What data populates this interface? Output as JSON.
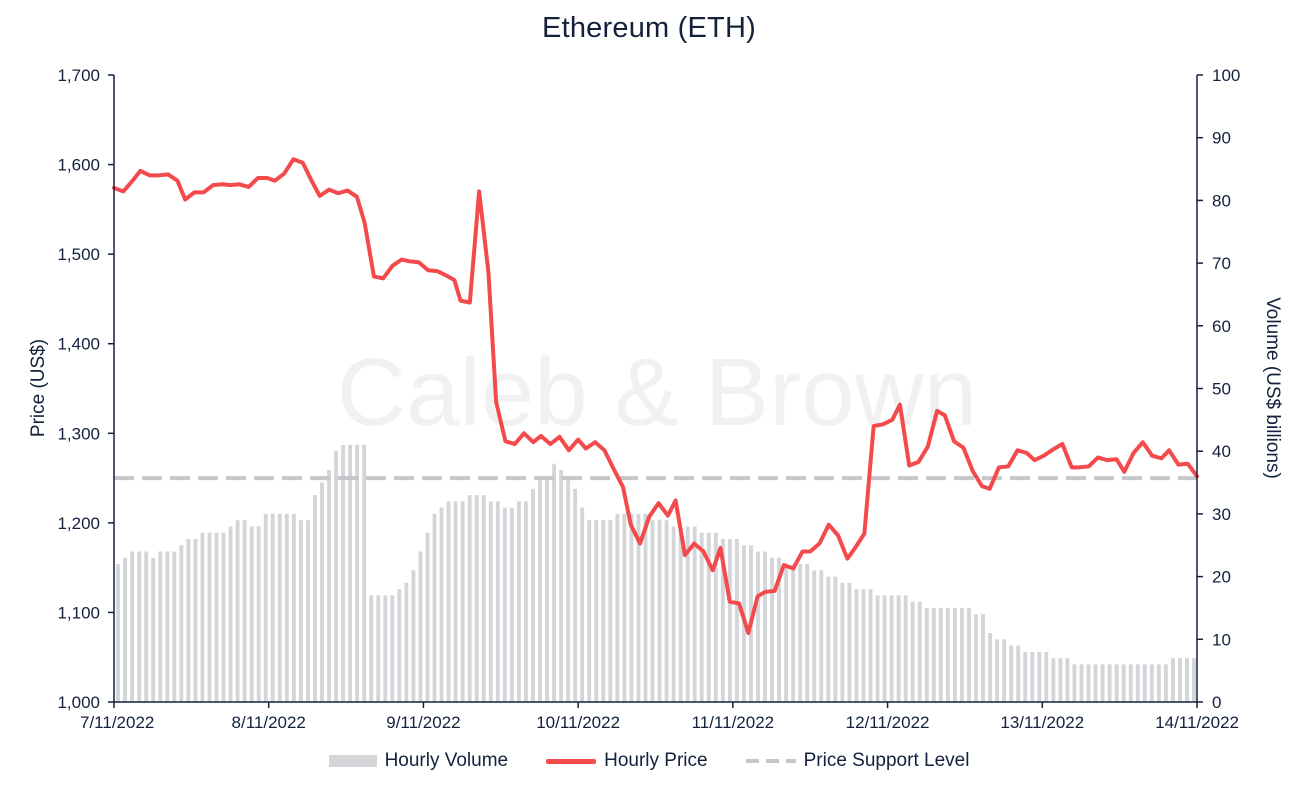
{
  "chart_data": {
    "type": "line",
    "title": "Ethereum (ETH)",
    "watermark": "Caleb & Brown",
    "x_ticks": [
      "7/11/2022",
      "8/11/2022",
      "9/11/2022",
      "10/11/2022",
      "11/11/2022",
      "12/11/2022",
      "13/11/2022",
      "14/11/2022"
    ],
    "x_range_days": [
      0,
      7
    ],
    "y_left": {
      "label": "Price (US$)",
      "range": [
        1000,
        1700
      ],
      "ticks": [
        "1,000",
        "1,100",
        "1,200",
        "1,300",
        "1,400",
        "1,500",
        "1,600",
        "1,700"
      ]
    },
    "y_right": {
      "label": "Volume (US$ billions)",
      "range": [
        0,
        100
      ],
      "ticks": [
        "0",
        "10",
        "20",
        "30",
        "40",
        "50",
        "60",
        "70",
        "80",
        "90",
        "100"
      ]
    },
    "price_support_level": 1250,
    "legend_position": "bottom",
    "colors": {
      "price": "#f44a4c",
      "volume": "#d3d5d9",
      "support": "#c4c6ca"
    },
    "series": [
      {
        "name": "Hourly Price",
        "axis": "left",
        "points": [
          [
            0.0,
            1574
          ],
          [
            0.06,
            1570
          ],
          [
            0.12,
            1582
          ],
          [
            0.17,
            1593
          ],
          [
            0.23,
            1588
          ],
          [
            0.29,
            1588
          ],
          [
            0.35,
            1589
          ],
          [
            0.41,
            1582
          ],
          [
            0.46,
            1561
          ],
          [
            0.52,
            1569
          ],
          [
            0.58,
            1569
          ],
          [
            0.64,
            1577
          ],
          [
            0.7,
            1578
          ],
          [
            0.75,
            1577
          ],
          [
            0.81,
            1578
          ],
          [
            0.87,
            1575
          ],
          [
            0.93,
            1585
          ],
          [
            0.99,
            1585
          ],
          [
            1.04,
            1582
          ],
          [
            1.1,
            1590
          ],
          [
            1.16,
            1606
          ],
          [
            1.22,
            1602
          ],
          [
            1.28,
            1581
          ],
          [
            1.33,
            1565
          ],
          [
            1.39,
            1572
          ],
          [
            1.45,
            1568
          ],
          [
            1.51,
            1571
          ],
          [
            1.57,
            1564
          ],
          [
            1.62,
            1535
          ],
          [
            1.68,
            1475
          ],
          [
            1.74,
            1473
          ],
          [
            1.8,
            1487
          ],
          [
            1.86,
            1494
          ],
          [
            1.91,
            1492
          ],
          [
            1.97,
            1491
          ],
          [
            2.03,
            1482
          ],
          [
            2.09,
            1481
          ],
          [
            2.15,
            1476
          ],
          [
            2.2,
            1471
          ],
          [
            2.24,
            1448
          ],
          [
            2.3,
            1446
          ],
          [
            2.36,
            1570
          ],
          [
            2.42,
            1480
          ],
          [
            2.47,
            1335
          ],
          [
            2.53,
            1291
          ],
          [
            2.59,
            1288
          ],
          [
            2.65,
            1300
          ],
          [
            2.71,
            1290
          ],
          [
            2.76,
            1297
          ],
          [
            2.82,
            1288
          ],
          [
            2.88,
            1296
          ],
          [
            2.94,
            1281
          ],
          [
            3.0,
            1293
          ],
          [
            3.05,
            1283
          ],
          [
            3.11,
            1290
          ],
          [
            3.17,
            1281
          ],
          [
            3.23,
            1260
          ],
          [
            3.29,
            1240
          ],
          [
            3.34,
            1198
          ],
          [
            3.4,
            1177
          ],
          [
            3.46,
            1207
          ],
          [
            3.52,
            1222
          ],
          [
            3.58,
            1208
          ],
          [
            3.63,
            1225
          ],
          [
            3.69,
            1164
          ],
          [
            3.75,
            1177
          ],
          [
            3.81,
            1168
          ],
          [
            3.87,
            1147
          ],
          [
            3.92,
            1172
          ],
          [
            3.98,
            1112
          ],
          [
            4.04,
            1110
          ],
          [
            4.1,
            1077
          ],
          [
            4.16,
            1118
          ],
          [
            4.21,
            1123
          ],
          [
            4.27,
            1124
          ],
          [
            4.33,
            1153
          ],
          [
            4.39,
            1149
          ],
          [
            4.45,
            1168
          ],
          [
            4.5,
            1168
          ],
          [
            4.56,
            1177
          ],
          [
            4.62,
            1198
          ],
          [
            4.68,
            1186
          ],
          [
            4.74,
            1160
          ],
          [
            4.79,
            1172
          ],
          [
            4.85,
            1188
          ],
          [
            4.91,
            1308
          ],
          [
            4.97,
            1310
          ],
          [
            5.03,
            1315
          ],
          [
            5.08,
            1332
          ],
          [
            5.14,
            1264
          ],
          [
            5.2,
            1268
          ],
          [
            5.26,
            1285
          ],
          [
            5.32,
            1325
          ],
          [
            5.37,
            1320
          ],
          [
            5.43,
            1291
          ],
          [
            5.49,
            1284
          ],
          [
            5.55,
            1258
          ],
          [
            5.61,
            1241
          ],
          [
            5.66,
            1238
          ],
          [
            5.72,
            1262
          ],
          [
            5.78,
            1263
          ],
          [
            5.84,
            1281
          ],
          [
            5.9,
            1278
          ],
          [
            5.95,
            1270
          ],
          [
            6.01,
            1275
          ],
          [
            6.07,
            1282
          ],
          [
            6.13,
            1288
          ],
          [
            6.19,
            1262
          ],
          [
            6.24,
            1262
          ],
          [
            6.3,
            1263
          ],
          [
            6.36,
            1273
          ],
          [
            6.42,
            1270
          ],
          [
            6.48,
            1271
          ],
          [
            6.53,
            1257
          ],
          [
            6.59,
            1278
          ],
          [
            6.65,
            1290
          ],
          [
            6.71,
            1275
          ],
          [
            6.77,
            1272
          ],
          [
            6.82,
            1281
          ],
          [
            6.88,
            1265
          ],
          [
            6.94,
            1266
          ],
          [
            7.0,
            1252
          ]
        ]
      },
      {
        "name": "Hourly Volume",
        "axis": "right",
        "values": [
          22,
          23,
          24,
          24,
          24,
          23,
          24,
          24,
          24,
          25,
          26,
          26,
          27,
          27,
          27,
          27,
          28,
          29,
          29,
          28,
          28,
          30,
          30,
          30,
          30,
          30,
          29,
          29,
          33,
          35,
          37,
          40,
          41,
          41,
          41,
          41,
          17,
          17,
          17,
          17,
          18,
          19,
          21,
          24,
          27,
          30,
          31,
          32,
          32,
          32,
          33,
          33,
          33,
          32,
          32,
          31,
          31,
          32,
          32,
          34,
          36,
          36,
          38,
          37,
          36,
          34,
          31,
          29,
          29,
          29,
          29,
          30,
          30,
          30,
          30,
          30,
          29,
          29,
          29,
          28,
          27,
          28,
          28,
          27,
          27,
          27,
          26,
          26,
          26,
          25,
          25,
          24,
          24,
          23,
          23,
          22,
          22,
          22,
          22,
          21,
          21,
          20,
          20,
          19,
          19,
          18,
          18,
          18,
          17,
          17,
          17,
          17,
          17,
          16,
          16,
          15,
          15,
          15,
          15,
          15,
          15,
          15,
          14,
          14,
          11,
          10,
          10,
          9,
          9,
          8,
          8,
          8,
          8,
          7,
          7,
          7,
          6,
          6,
          6,
          6,
          6,
          6,
          6,
          6,
          6,
          6,
          6,
          6,
          6,
          6,
          7,
          7,
          7,
          7
        ]
      },
      {
        "name": "Price Support Level",
        "axis": "left",
        "value": 1250
      }
    ]
  }
}
